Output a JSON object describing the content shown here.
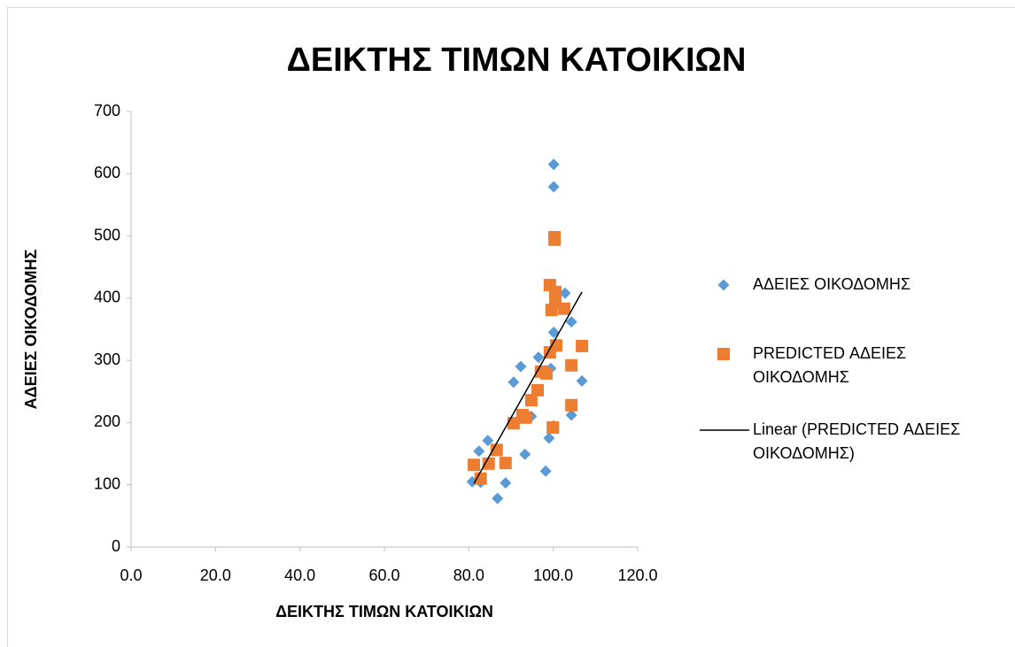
{
  "chart_data": {
    "type": "scatter",
    "title": "ΔΕΙΚΤΗΣ ΤΙΜΩΝ ΚΑΤΟΙΚΙΩΝ",
    "x_label": "ΔΕΙΚΤΗΣ ΤΙΜΩΝ ΚΑΤΟΙΚΙΩΝ",
    "y_label": "ΑΔΕΙΕΣ ΟΙΚΟΔΟΜΗΣ",
    "xlim": [
      0,
      120
    ],
    "xticks": [
      {
        "value": 0,
        "label": "0.0"
      },
      {
        "value": 20,
        "label": "20.0"
      },
      {
        "value": 40,
        "label": "40.0"
      },
      {
        "value": 60,
        "label": "60.0"
      },
      {
        "value": 80,
        "label": "80.0"
      },
      {
        "value": 100,
        "label": "100.0"
      },
      {
        "value": 120,
        "label": "120.0"
      }
    ],
    "ylim": [
      0,
      700
    ],
    "yticks": [
      0,
      100,
      200,
      300,
      400,
      500,
      600,
      700
    ],
    "grid": false,
    "legend": "right",
    "series": [
      {
        "name": "ΑΔΕΙΕΣ ΟΙΚΟΔΟΜΗΣ",
        "color": "#5b9bd5",
        "marker": "diamond",
        "x": [
          100.1,
          100.1,
          102.8,
          104.3,
          100.1,
          96.5,
          92.3,
          90.6,
          106.8,
          99.4,
          94.8,
          104.3,
          100.1,
          84.5,
          82.4,
          99.0,
          93.3,
          80.8,
          82.8,
          88.7,
          98.2,
          86.8
        ],
        "values": [
          615,
          579,
          408,
          362,
          345,
          305,
          290,
          265,
          267,
          287,
          210,
          212,
          195,
          171,
          154,
          175,
          149,
          105,
          104,
          103,
          122,
          78
        ]
      },
      {
        "name": "PREDICTED ΑΔΕΙΕΣ ΟΙΚΟΔΟΜΗΣ",
        "color": "#ed7d31",
        "marker": "square",
        "x": [
          100.3,
          100.3,
          99.2,
          100.5,
          99.6,
          100.5,
          102.6,
          100.7,
          106.8,
          99.2,
          97.1,
          98.4,
          104.3,
          96.3,
          94.8,
          104.3,
          92.7,
          93.5,
          90.6,
          99.9,
          86.6,
          81.2,
          84.7,
          88.7,
          82.8
        ],
        "values": [
          498,
          494,
          421,
          410,
          381,
          395,
          383,
          324,
          323,
          313,
          282,
          279,
          292,
          252,
          236,
          228,
          212,
          208,
          199,
          192,
          156,
          132,
          134,
          135,
          110
        ]
      }
    ],
    "trendline": {
      "name": "Linear (PREDICTED ΑΔΕΙΕΣ ΟΙΚΟΔΟΜΗΣ)",
      "color": "#000000",
      "x": [
        81.2,
        106.8
      ],
      "values": [
        102,
        410
      ]
    }
  }
}
